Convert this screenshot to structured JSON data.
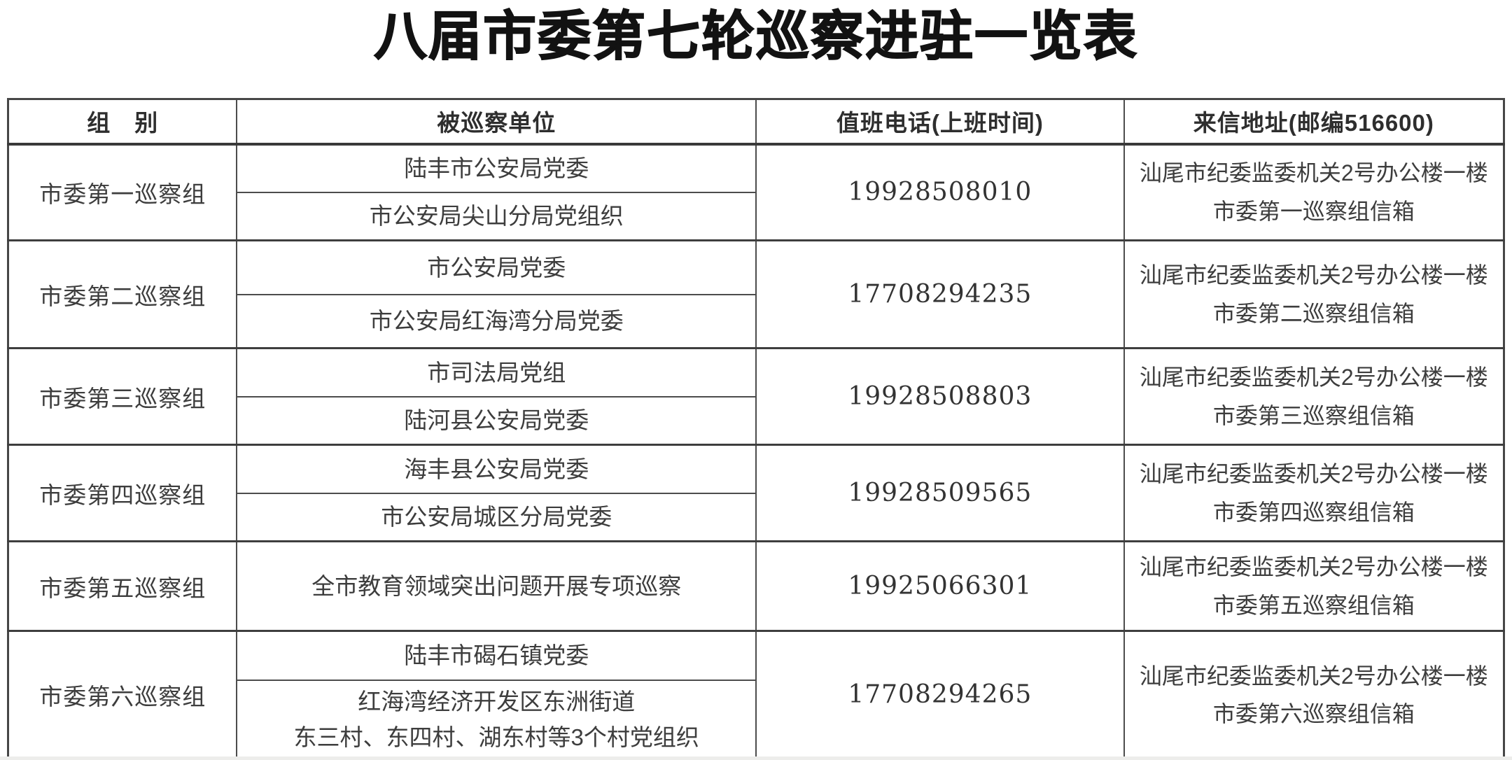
{
  "title": "八届市委第七轮巡察进驻一览表",
  "table": {
    "headers": {
      "group": "组　别",
      "unit": "被巡察单位",
      "phone": "值班电话(上班时间)",
      "address": "来信地址(邮编516600)"
    },
    "groups": [
      {
        "group": "市委第一巡察组",
        "units": [
          "陆丰市公安局党委",
          "市公安局尖山分局党组织"
        ],
        "phone": "19928508010",
        "address_line1": "汕尾市纪委监委机关2号办公楼一楼",
        "address_line2": "市委第一巡察组信箱"
      },
      {
        "group": "市委第二巡察组",
        "units": [
          "市公安局党委",
          "市公安局红海湾分局党委"
        ],
        "phone": "17708294235",
        "address_line1": "汕尾市纪委监委机关2号办公楼一楼",
        "address_line2": "市委第二巡察组信箱"
      },
      {
        "group": "市委第三巡察组",
        "units": [
          "市司法局党组",
          "陆河县公安局党委"
        ],
        "phone": "19928508803",
        "address_line1": "汕尾市纪委监委机关2号办公楼一楼",
        "address_line2": "市委第三巡察组信箱"
      },
      {
        "group": "市委第四巡察组",
        "units": [
          "海丰县公安局党委",
          "市公安局城区分局党委"
        ],
        "phone": "19928509565",
        "address_line1": "汕尾市纪委监委机关2号办公楼一楼",
        "address_line2": "市委第四巡察组信箱"
      },
      {
        "group": "市委第五巡察组",
        "units": [
          "全市教育领域突出问题开展专项巡察"
        ],
        "phone": "19925066301",
        "address_line1": "汕尾市纪委监委机关2号办公楼一楼",
        "address_line2": "市委第五巡察组信箱"
      },
      {
        "group": "市委第六巡察组",
        "units": [
          "陆丰市碣石镇党委",
          "红海湾经济开发区东洲街道\n东三村、东四村、湖东村等3个村党组织"
        ],
        "phone": "17708294265",
        "address_line1": "汕尾市纪委监委机关2号办公楼一楼",
        "address_line2": "市委第六巡察组信箱"
      }
    ]
  }
}
